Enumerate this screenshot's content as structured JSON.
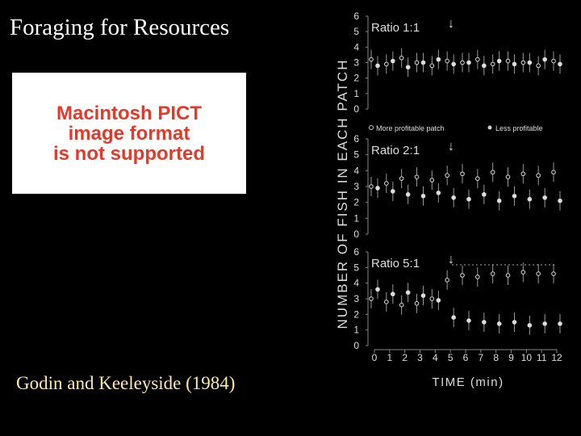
{
  "title": "Foraging for Resources",
  "placeholder": {
    "lines": [
      "Macintosh PICT",
      "image format",
      "is not supported"
    ]
  },
  "citation": "Godin and Keeleyside (1984)",
  "figure": {
    "y_label": "NUMBER OF FISH IN EACH PATCH",
    "x_label": "TIME (min)",
    "xticks": [
      0,
      1,
      2,
      3,
      4,
      5,
      6,
      7,
      8,
      9,
      10,
      11,
      12
    ],
    "yticks": [
      0,
      1,
      2,
      3,
      4,
      5,
      6
    ],
    "arrow": "↓",
    "legend": {
      "open": "More profitable patch",
      "filled": "Less profitable"
    },
    "panels": [
      {
        "title": "Ratio 1:1",
        "series": [
          {
            "values": [
              3.2,
              2.9,
              3.3,
              3.0,
              2.8,
              3.1,
              3.0,
              3.2,
              2.9,
              3.1,
              3.0,
              2.8,
              3.1
            ]
          },
          {
            "values": [
              2.8,
              3.1,
              2.7,
              3.0,
              3.2,
              2.9,
              3.0,
              2.8,
              3.1,
              2.9,
              3.0,
              3.2,
              2.9
            ]
          }
        ]
      },
      {
        "title": "Ratio 2:1",
        "series": [
          {
            "values": [
              3.0,
              3.2,
              3.5,
              3.6,
              3.4,
              3.7,
              3.8,
              3.5,
              3.9,
              3.6,
              3.8,
              3.7,
              3.9
            ]
          },
          {
            "values": [
              2.9,
              2.7,
              2.5,
              2.4,
              2.6,
              2.3,
              2.2,
              2.5,
              2.1,
              2.4,
              2.2,
              2.3,
              2.1
            ]
          }
        ]
      },
      {
        "title": "Ratio 5:1",
        "series": [
          {
            "values": [
              3.0,
              2.8,
              2.6,
              2.7,
              3.0,
              4.2,
              4.5,
              4.4,
              4.6,
              4.5,
              4.7,
              4.6,
              4.6
            ]
          },
          {
            "values": [
              3.6,
              3.3,
              3.4,
              3.2,
              2.9,
              1.8,
              1.6,
              1.5,
              1.4,
              1.5,
              1.3,
              1.4,
              1.4
            ]
          }
        ]
      }
    ]
  }
}
